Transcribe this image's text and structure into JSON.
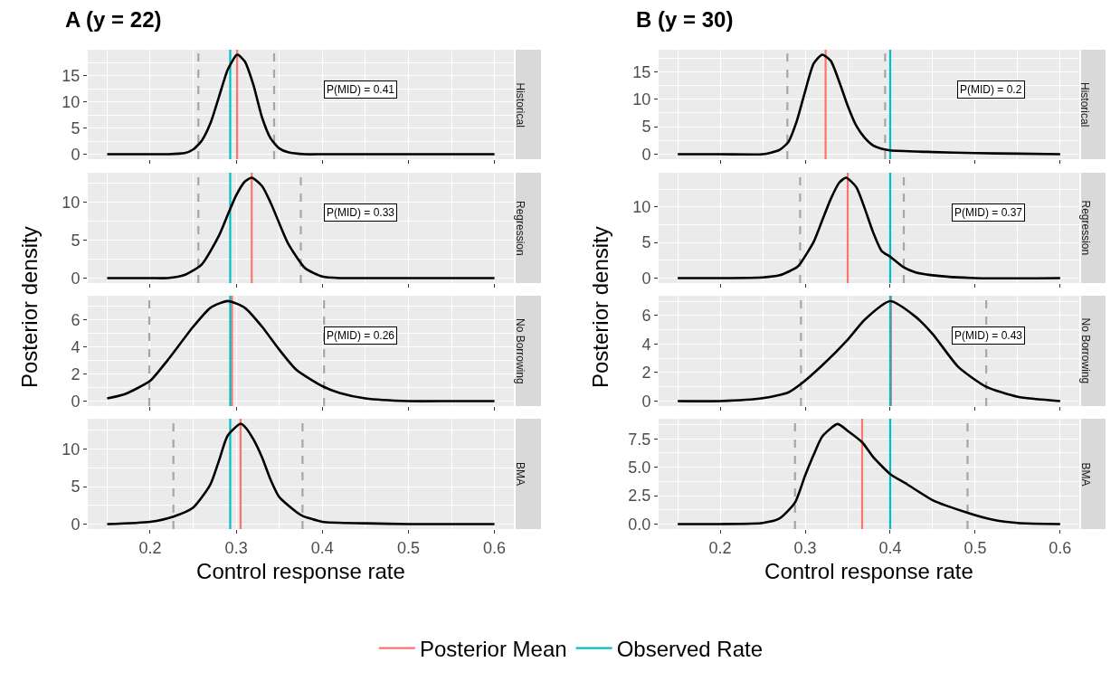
{
  "chart_data": [
    {
      "type": "line",
      "title": "A (y = 22)",
      "subtitle": "Historical",
      "ylabel": "Posterior density",
      "legend": "bottom",
      "grid": true,
      "tick_labels": "y",
      "xlim": [
        0.1275,
        0.6225
      ],
      "xticks": [
        0.2,
        0.3,
        0.4,
        0.5,
        0.6
      ],
      "ylim": [
        -0.95,
        19.95
      ],
      "yticks": [
        0,
        5,
        10,
        15
      ],
      "annotations": [
        "P(MID) = 0.41"
      ],
      "x": [
        0.15,
        0.2,
        0.22,
        0.24,
        0.25,
        0.26,
        0.27,
        0.28,
        0.29,
        0.3,
        0.302,
        0.31,
        0.32,
        0.33,
        0.34,
        0.35,
        0.36,
        0.38,
        0.4,
        0.45,
        0.5,
        0.6
      ],
      "series": [
        {
          "color": "#000000",
          "values": [
            0,
            0,
            0,
            0.2,
            0.9,
            2.6,
            5.9,
            11.0,
            16.1,
            18.9,
            19,
            17.7,
            13.2,
            7.0,
            3.0,
            1.1,
            0.4,
            0,
            0,
            0,
            0,
            0
          ]
        }
      ],
      "ref_lines": [
        {
          "axis": "x",
          "value": 0.256,
          "color": "#a6a6a6",
          "line_style": "dashed"
        },
        {
          "axis": "x",
          "value": 0.344,
          "color": "#a6a6a6",
          "line_style": "dashed"
        },
        {
          "axis": "x",
          "value": 0.301,
          "color": "#f8766d",
          "line_style": "solid",
          "label": "Posterior Mean"
        },
        {
          "axis": "x",
          "value": 0.293,
          "color": "#00bfc4",
          "line_style": "solid",
          "label": "Observed Rate"
        }
      ]
    },
    {
      "type": "line",
      "subtitle": "Regression",
      "grid": true,
      "tick_labels": "y",
      "xlim": [
        0.1275,
        0.6225
      ],
      "xticks": [
        0.2,
        0.3,
        0.4,
        0.5,
        0.6
      ],
      "ylim": [
        -0.66,
        13.86
      ],
      "yticks": [
        0,
        5,
        10
      ],
      "annotations": [
        "P(MID) = 0.33"
      ],
      "x": [
        0.15,
        0.2,
        0.22,
        0.24,
        0.26,
        0.28,
        0.29,
        0.3,
        0.31,
        0.318,
        0.33,
        0.34,
        0.35,
        0.36,
        0.38,
        0.4,
        0.42,
        0.45,
        0.5,
        0.6
      ],
      "series": [
        {
          "color": "#000000",
          "values": [
            0,
            0,
            0,
            0.4,
            1.8,
            5.6,
            8.3,
            10.9,
            12.7,
            13.2,
            12.1,
            9.9,
            7.2,
            4.6,
            1.3,
            0.2,
            0,
            0,
            0,
            0
          ]
        }
      ],
      "ref_lines": [
        {
          "axis": "x",
          "value": 0.256,
          "color": "#a6a6a6",
          "line_style": "dashed"
        },
        {
          "axis": "x",
          "value": 0.375,
          "color": "#a6a6a6",
          "line_style": "dashed"
        },
        {
          "axis": "x",
          "value": 0.318,
          "color": "#f8766d",
          "line_style": "solid"
        },
        {
          "axis": "x",
          "value": 0.293,
          "color": "#00bfc4",
          "line_style": "solid"
        }
      ]
    },
    {
      "type": "line",
      "subtitle": "No Borrowing",
      "grid": true,
      "tick_labels": "y",
      "xlim": [
        0.1275,
        0.6225
      ],
      "xticks": [
        0.2,
        0.3,
        0.4,
        0.5,
        0.6
      ],
      "ylim": [
        -0.37,
        7.79
      ],
      "yticks": [
        0,
        2,
        4,
        6
      ],
      "annotations": [
        "P(MID) = 0.26"
      ],
      "x": [
        0.15,
        0.17,
        0.2,
        0.22,
        0.25,
        0.27,
        0.29,
        0.31,
        0.33,
        0.35,
        0.37,
        0.4,
        0.42,
        0.45,
        0.5,
        0.55,
        0.6
      ],
      "series": [
        {
          "color": "#000000",
          "values": [
            0.2,
            0.5,
            1.5,
            3.0,
            5.5,
            6.9,
            7.4,
            6.9,
            5.5,
            3.8,
            2.3,
            1.1,
            0.6,
            0.2,
            0,
            0,
            0
          ]
        }
      ],
      "ref_lines": [
        {
          "axis": "x",
          "value": 0.199,
          "color": "#a6a6a6",
          "line_style": "dashed"
        },
        {
          "axis": "x",
          "value": 0.402,
          "color": "#a6a6a6",
          "line_style": "dashed"
        },
        {
          "axis": "x",
          "value": 0.295,
          "color": "#f8766d",
          "line_style": "solid"
        },
        {
          "axis": "x",
          "value": 0.293,
          "color": "#00bfc4",
          "line_style": "solid"
        }
      ]
    },
    {
      "type": "line",
      "subtitle": "BMA",
      "xlabel": "Control response rate",
      "grid": true,
      "xlim": [
        0.1275,
        0.6225
      ],
      "xticks": [
        0.2,
        0.3,
        0.4,
        0.5,
        0.6
      ],
      "ylim": [
        -0.67,
        14.07
      ],
      "yticks": [
        0,
        5,
        10
      ],
      "x": [
        0.15,
        0.2,
        0.227,
        0.25,
        0.27,
        0.28,
        0.29,
        0.305,
        0.31,
        0.32,
        0.33,
        0.34,
        0.35,
        0.37,
        0.377,
        0.4,
        0.45,
        0.5,
        0.6
      ],
      "series": [
        {
          "color": "#000000",
          "values": [
            0,
            0.3,
            1.0,
            2.2,
            5.3,
            8.5,
            11.8,
            13.4,
            13.0,
            11.3,
            8.9,
            5.9,
            3.6,
            1.6,
            1.1,
            0.3,
            0.1,
            0,
            0
          ]
        }
      ],
      "ref_lines": [
        {
          "axis": "x",
          "value": 0.227,
          "color": "#a6a6a6",
          "line_style": "dashed"
        },
        {
          "axis": "x",
          "value": 0.377,
          "color": "#a6a6a6",
          "line_style": "dashed"
        },
        {
          "axis": "x",
          "value": 0.305,
          "color": "#f8766d",
          "line_style": "solid"
        },
        {
          "axis": "x",
          "value": 0.293,
          "color": "#00bfc4",
          "line_style": "solid"
        }
      ]
    },
    {
      "type": "line",
      "title": "B (y = 30)",
      "subtitle": "Historical",
      "ylabel": "Posterior density",
      "grid": true,
      "tick_labels": "y",
      "xlim": [
        0.1275,
        0.6225
      ],
      "xticks": [
        0.2,
        0.3,
        0.4,
        0.5,
        0.6
      ],
      "ylim": [
        -0.9,
        19.0
      ],
      "yticks": [
        0,
        5,
        10,
        15
      ],
      "annotations": [
        "P(MID) = 0.2"
      ],
      "x": [
        0.15,
        0.2,
        0.25,
        0.26,
        0.27,
        0.28,
        0.29,
        0.3,
        0.31,
        0.32,
        0.33,
        0.34,
        0.35,
        0.36,
        0.37,
        0.38,
        0.39,
        0.4,
        0.45,
        0.5,
        0.55,
        0.6
      ],
      "series": [
        {
          "color": "#000000",
          "values": [
            0,
            0,
            0,
            0.3,
            0.8,
            2.2,
            6.0,
            11.5,
            16.5,
            18.1,
            17.0,
            13.2,
            8.8,
            5.2,
            3.0,
            1.6,
            1.0,
            0.7,
            0.4,
            0.2,
            0.1,
            0
          ]
        }
      ],
      "ref_lines": [
        {
          "axis": "x",
          "value": 0.279,
          "color": "#a6a6a6",
          "line_style": "dashed"
        },
        {
          "axis": "x",
          "value": 0.394,
          "color": "#a6a6a6",
          "line_style": "dashed"
        },
        {
          "axis": "x",
          "value": 0.324,
          "color": "#f8766d",
          "line_style": "solid"
        },
        {
          "axis": "x",
          "value": 0.4,
          "color": "#00bfc4",
          "line_style": "solid"
        }
      ]
    },
    {
      "type": "line",
      "subtitle": "Regression",
      "grid": true,
      "tick_labels": "y",
      "xlim": [
        0.1275,
        0.6225
      ],
      "xticks": [
        0.2,
        0.3,
        0.4,
        0.5,
        0.6
      ],
      "ylim": [
        -0.7,
        14.8
      ],
      "yticks": [
        0,
        5,
        10
      ],
      "annotations": [
        "P(MID) = 0.37"
      ],
      "x": [
        0.15,
        0.2,
        0.25,
        0.27,
        0.29,
        0.294,
        0.31,
        0.32,
        0.33,
        0.34,
        0.348,
        0.36,
        0.37,
        0.38,
        0.39,
        0.4,
        0.416,
        0.43,
        0.45,
        0.5,
        0.6
      ],
      "series": [
        {
          "color": "#000000",
          "values": [
            0,
            0,
            0.1,
            0.4,
            1.5,
            2.0,
            5.1,
            8.1,
            11.1,
            13.4,
            14.1,
            12.8,
            9.8,
            6.4,
            3.8,
            3.0,
            1.5,
            0.8,
            0.4,
            0,
            0
          ]
        }
      ],
      "ref_lines": [
        {
          "axis": "x",
          "value": 0.294,
          "color": "#a6a6a6",
          "line_style": "dashed"
        },
        {
          "axis": "x",
          "value": 0.416,
          "color": "#a6a6a6",
          "line_style": "dashed"
        },
        {
          "axis": "x",
          "value": 0.35,
          "color": "#f8766d",
          "line_style": "solid"
        },
        {
          "axis": "x",
          "value": 0.4,
          "color": "#00bfc4",
          "line_style": "solid"
        }
      ]
    },
    {
      "type": "line",
      "subtitle": "No Borrowing",
      "grid": true,
      "tick_labels": "y",
      "xlim": [
        0.1275,
        0.6225
      ],
      "xticks": [
        0.2,
        0.3,
        0.4,
        0.5,
        0.6
      ],
      "ylim": [
        -0.35,
        7.38
      ],
      "yticks": [
        0,
        2,
        4,
        6
      ],
      "annotations": [
        "P(MID) = 0.43"
      ],
      "x": [
        0.15,
        0.2,
        0.25,
        0.28,
        0.295,
        0.32,
        0.35,
        0.37,
        0.4,
        0.43,
        0.45,
        0.48,
        0.513,
        0.55,
        0.6
      ],
      "series": [
        {
          "color": "#000000",
          "values": [
            0,
            0,
            0.2,
            0.6,
            1.2,
            2.5,
            4.3,
            5.7,
            7.0,
            5.9,
            4.7,
            2.4,
            1.0,
            0.3,
            0
          ]
        }
      ],
      "ref_lines": [
        {
          "axis": "x",
          "value": 0.295,
          "color": "#a6a6a6",
          "line_style": "dashed"
        },
        {
          "axis": "x",
          "value": 0.513,
          "color": "#a6a6a6",
          "line_style": "dashed"
        },
        {
          "axis": "x",
          "value": 0.401,
          "color": "#f8766d",
          "line_style": "solid"
        },
        {
          "axis": "x",
          "value": 0.4,
          "color": "#00bfc4",
          "line_style": "solid"
        }
      ]
    },
    {
      "type": "line",
      "subtitle": "BMA",
      "xlabel": "Control response rate",
      "grid": true,
      "xlim": [
        0.1275,
        0.6225
      ],
      "xticks": [
        0.2,
        0.3,
        0.4,
        0.5,
        0.6
      ],
      "ylim": [
        -0.44,
        9.27
      ],
      "yticks": [
        {
          "value": 0,
          "label": "0.0"
        },
        {
          "value": 2.5,
          "label": "2.5"
        },
        {
          "value": 5,
          "label": "5.0"
        },
        {
          "value": 7.5,
          "label": "7.5"
        }
      ],
      "x": [
        0.15,
        0.2,
        0.25,
        0.27,
        0.288,
        0.3,
        0.31,
        0.32,
        0.338,
        0.35,
        0.367,
        0.38,
        0.4,
        0.42,
        0.45,
        0.491,
        0.52,
        0.55,
        0.6
      ],
      "series": [
        {
          "color": "#000000",
          "values": [
            0,
            0,
            0.1,
            0.5,
            1.9,
            4.3,
            6.1,
            7.7,
            8.8,
            8.2,
            7.2,
            5.9,
            4.4,
            3.5,
            2.1,
            1.0,
            0.4,
            0.1,
            0
          ]
        }
      ],
      "ref_lines": [
        {
          "axis": "x",
          "value": 0.288,
          "color": "#a6a6a6",
          "line_style": "dashed"
        },
        {
          "axis": "x",
          "value": 0.491,
          "color": "#a6a6a6",
          "line_style": "dashed"
        },
        {
          "axis": "x",
          "value": 0.367,
          "color": "#f8766d",
          "line_style": "solid"
        },
        {
          "axis": "x",
          "value": 0.4,
          "color": "#00bfc4",
          "line_style": "solid"
        }
      ]
    }
  ]
}
